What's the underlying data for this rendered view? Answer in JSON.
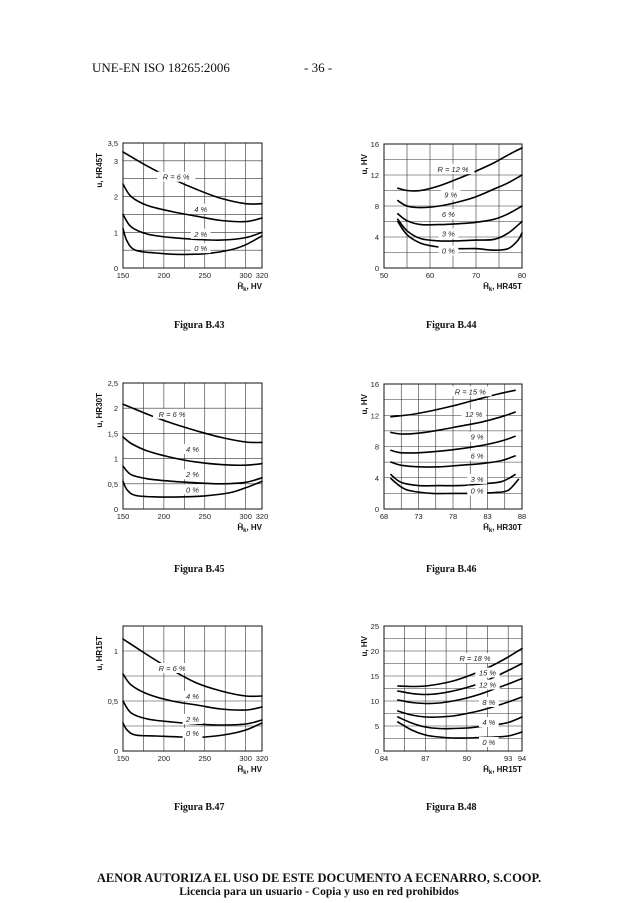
{
  "header": {
    "standard": "UNE-EN ISO 18265:2006",
    "page": "- 36 -"
  },
  "footer": {
    "line1": "AENOR AUTORIZA EL USO DE ESTE DOCUMENTO A ECENARRO, S.COOP.",
    "line2": "Licencia para un usuario - Copia y uso en red prohibidos"
  },
  "chart_data": [
    {
      "type": "line",
      "caption": "Figura B.43",
      "xlabel": "H̄k, HV",
      "ylabel": "u, HR45T",
      "xlim": [
        150,
        320
      ],
      "ylim": [
        0,
        3.5
      ],
      "xticks": [
        150,
        200,
        250,
        300,
        320
      ],
      "xtick_labels": [
        "150",
        "200",
        "250",
        "300",
        "320"
      ],
      "yticks": [
        0,
        1,
        2,
        3,
        3.5
      ],
      "ytick_labels": [
        "0",
        "1",
        "2",
        "3",
        "3,5"
      ],
      "xgrid": [
        150,
        175,
        200,
        225,
        250,
        275,
        300,
        320
      ],
      "ygrid": [
        0,
        0.5,
        1,
        1.5,
        2,
        2.5,
        3,
        3.5
      ],
      "series": [
        {
          "name": "R = 6 %",
          "x": [
            150,
            180,
            210,
            240,
            270,
            300,
            320
          ],
          "y": [
            3.25,
            2.85,
            2.5,
            2.2,
            1.95,
            1.8,
            1.8
          ],
          "label_x": 215,
          "label_y": 2.5
        },
        {
          "name": "4 %",
          "x": [
            150,
            160,
            180,
            210,
            240,
            270,
            300,
            320
          ],
          "y": [
            2.35,
            2.0,
            1.75,
            1.58,
            1.45,
            1.33,
            1.3,
            1.4
          ],
          "label_x": 245,
          "label_y": 1.6
        },
        {
          "name": "2 %",
          "x": [
            150,
            160,
            180,
            210,
            240,
            270,
            300,
            320
          ],
          "y": [
            1.5,
            1.15,
            0.95,
            0.85,
            0.8,
            0.78,
            0.85,
            1.0
          ],
          "label_x": 245,
          "label_y": 0.9
        },
        {
          "name": "0 %",
          "x": [
            150,
            155,
            165,
            190,
            220,
            250,
            280,
            300,
            320
          ],
          "y": [
            1.1,
            0.75,
            0.5,
            0.42,
            0.38,
            0.4,
            0.5,
            0.65,
            0.9
          ],
          "label_x": 245,
          "label_y": 0.5
        }
      ]
    },
    {
      "type": "line",
      "caption": "Figura B.44",
      "xlabel": "H̄k, HR45T",
      "ylabel": "u, HV",
      "xlim": [
        50,
        80
      ],
      "ylim": [
        0,
        16
      ],
      "xticks": [
        50,
        60,
        70,
        80
      ],
      "xtick_labels": [
        "50",
        "60",
        "70",
        "80"
      ],
      "yticks": [
        0,
        4,
        8,
        12,
        16
      ],
      "ytick_labels": [
        "0",
        "4",
        "8",
        "12",
        "16"
      ],
      "xgrid": [
        50,
        55,
        60,
        65,
        70,
        75,
        80
      ],
      "ygrid": [
        0,
        2,
        4,
        6,
        8,
        10,
        12,
        14,
        16
      ],
      "series": [
        {
          "name": "R = 12 %",
          "x": [
            53,
            55,
            58,
            62,
            66,
            70,
            74,
            77,
            80
          ],
          "y": [
            10.3,
            10.0,
            10.0,
            10.6,
            11.5,
            12.5,
            13.6,
            14.6,
            15.5
          ],
          "label_x": 65,
          "label_y": 12.5
        },
        {
          "name": "9 %",
          "x": [
            53,
            55,
            58,
            62,
            66,
            70,
            74,
            77,
            80
          ],
          "y": [
            8.7,
            8.0,
            7.8,
            8.0,
            8.5,
            9.2,
            10.2,
            11.0,
            12.0
          ],
          "label_x": 64.5,
          "label_y": 9.2
        },
        {
          "name": "6 %",
          "x": [
            53,
            55,
            58,
            62,
            66,
            70,
            74,
            77,
            80
          ],
          "y": [
            7.0,
            6.1,
            5.6,
            5.6,
            5.7,
            5.9,
            6.3,
            7.0,
            8.0
          ],
          "label_x": 64,
          "label_y": 6.7
        },
        {
          "name": "3 %",
          "x": [
            53,
            55,
            58,
            62,
            66,
            70,
            74,
            77,
            80
          ],
          "y": [
            6.3,
            4.8,
            3.8,
            3.5,
            3.5,
            3.6,
            3.7,
            4.5,
            6.0
          ],
          "label_x": 64,
          "label_y": 4.2
        },
        {
          "name": "0 %",
          "x": [
            53,
            55,
            58,
            62,
            66,
            70,
            74,
            77,
            79,
            80
          ],
          "y": [
            6.0,
            4.3,
            3.2,
            2.7,
            2.5,
            2.5,
            2.3,
            2.5,
            3.5,
            4.5
          ],
          "label_x": 64,
          "label_y": 2.0
        }
      ]
    },
    {
      "type": "line",
      "caption": "Figura B.45",
      "xlabel": "H̄k, HV",
      "ylabel": "u, HR30T",
      "xlim": [
        150,
        320
      ],
      "ylim": [
        0,
        2.5
      ],
      "xticks": [
        150,
        200,
        250,
        300,
        320
      ],
      "xtick_labels": [
        "150",
        "200",
        "250",
        "300",
        "320"
      ],
      "yticks": [
        0,
        0.5,
        1,
        1.5,
        2,
        2.5
      ],
      "ytick_labels": [
        "0",
        "0,5",
        "1",
        "1,5",
        "2",
        "2,5"
      ],
      "xgrid": [
        150,
        175,
        200,
        225,
        250,
        275,
        300,
        320
      ],
      "ygrid": [
        0,
        0.5,
        1,
        1.5,
        2,
        2.5
      ],
      "series": [
        {
          "name": "R = 6 %",
          "x": [
            150,
            180,
            210,
            240,
            270,
            300,
            320
          ],
          "y": [
            2.08,
            1.88,
            1.7,
            1.55,
            1.42,
            1.33,
            1.32
          ],
          "label_x": 210,
          "label_y": 1.85
        },
        {
          "name": "4 %",
          "x": [
            150,
            160,
            180,
            210,
            240,
            270,
            300,
            320
          ],
          "y": [
            1.43,
            1.3,
            1.15,
            1.02,
            0.93,
            0.88,
            0.87,
            0.9
          ],
          "label_x": 235,
          "label_y": 1.15
        },
        {
          "name": "2 %",
          "x": [
            150,
            160,
            180,
            210,
            240,
            270,
            300,
            320
          ],
          "y": [
            0.85,
            0.68,
            0.6,
            0.55,
            0.52,
            0.5,
            0.53,
            0.62
          ],
          "label_x": 235,
          "label_y": 0.65
        },
        {
          "name": "0 %",
          "x": [
            150,
            155,
            165,
            190,
            220,
            250,
            280,
            300,
            320
          ],
          "y": [
            0.55,
            0.38,
            0.27,
            0.24,
            0.24,
            0.26,
            0.32,
            0.42,
            0.55
          ],
          "label_x": 235,
          "label_y": 0.35
        }
      ]
    },
    {
      "type": "line",
      "caption": "Figura B.46",
      "xlabel": "H̄k, HR30T",
      "ylabel": "u, HV",
      "xlim": [
        68,
        88
      ],
      "ylim": [
        0,
        16
      ],
      "xticks": [
        68,
        73,
        78,
        83,
        88
      ],
      "xtick_labels": [
        "68",
        "73",
        "78",
        "83",
        "88"
      ],
      "yticks": [
        0,
        4,
        8,
        12,
        16
      ],
      "ytick_labels": [
        "0",
        "4",
        "8",
        "12",
        "16"
      ],
      "xgrid": [
        68,
        70.5,
        73,
        75.5,
        78,
        80.5,
        83,
        85.5,
        88
      ],
      "ygrid": [
        0,
        2,
        4,
        6,
        8,
        10,
        12,
        14,
        16
      ],
      "series": [
        {
          "name": "R = 15 %",
          "x": [
            69,
            72,
            75,
            78,
            81,
            84,
            87
          ],
          "y": [
            11.8,
            12.1,
            12.6,
            13.2,
            13.9,
            14.6,
            15.2
          ],
          "label_x": 80.5,
          "label_y": 14.8
        },
        {
          "name": "12 %",
          "x": [
            69,
            70.5,
            73,
            76,
            79,
            82,
            85,
            87
          ],
          "y": [
            9.8,
            9.6,
            9.7,
            10.1,
            10.6,
            11.1,
            11.8,
            12.4
          ],
          "label_x": 81,
          "label_y": 11.9
        },
        {
          "name": "9 %",
          "x": [
            69,
            70.5,
            73,
            76,
            79,
            82,
            85,
            87
          ],
          "y": [
            7.5,
            7.2,
            7.2,
            7.4,
            7.7,
            8.1,
            8.7,
            9.3
          ],
          "label_x": 81.5,
          "label_y": 9.0
        },
        {
          "name": "6 %",
          "x": [
            69,
            70.5,
            73,
            76,
            79,
            82,
            85,
            87
          ],
          "y": [
            6.0,
            5.6,
            5.4,
            5.4,
            5.6,
            5.8,
            6.2,
            6.8
          ],
          "label_x": 81.5,
          "label_y": 6.6
        },
        {
          "name": "3 %",
          "x": [
            69,
            70.5,
            73,
            76,
            79,
            82,
            85,
            87
          ],
          "y": [
            4.4,
            3.4,
            3.0,
            3.0,
            3.0,
            3.2,
            3.5,
            4.4
          ],
          "label_x": 81.5,
          "label_y": 3.6
        },
        {
          "name": "0 %",
          "x": [
            69,
            70.5,
            72,
            75,
            78,
            81,
            84,
            86,
            87.5
          ],
          "y": [
            3.9,
            2.8,
            2.3,
            2.0,
            2.0,
            2.0,
            2.1,
            2.4,
            3.8
          ],
          "label_x": 81.5,
          "label_y": 2.1
        }
      ]
    },
    {
      "type": "line",
      "caption": "Figura B.47",
      "xlabel": "H̄k, HV",
      "ylabel": "u, HR15T",
      "xlim": [
        150,
        320
      ],
      "ylim": [
        0,
        1.25
      ],
      "xticks": [
        150,
        200,
        250,
        300,
        320
      ],
      "xtick_labels": [
        "150",
        "200",
        "250",
        "300",
        "320"
      ],
      "yticks": [
        0,
        0.5,
        1
      ],
      "ytick_labels": [
        "0",
        "0,5",
        "1"
      ],
      "xgrid": [
        150,
        175,
        200,
        225,
        250,
        275,
        300,
        320
      ],
      "ygrid": [
        0,
        0.25,
        0.5,
        0.75,
        1,
        1.25
      ],
      "series": [
        {
          "name": "R = 6 %",
          "x": [
            150,
            180,
            210,
            240,
            270,
            300,
            320
          ],
          "y": [
            1.12,
            0.96,
            0.81,
            0.68,
            0.6,
            0.55,
            0.55
          ],
          "label_x": 210,
          "label_y": 0.81
        },
        {
          "name": "4 %",
          "x": [
            150,
            160,
            180,
            210,
            240,
            270,
            300,
            320
          ],
          "y": [
            0.77,
            0.66,
            0.57,
            0.5,
            0.46,
            0.42,
            0.41,
            0.44
          ],
          "label_x": 235,
          "label_y": 0.53
        },
        {
          "name": "2 %",
          "x": [
            150,
            160,
            180,
            210,
            240,
            270,
            300,
            320
          ],
          "y": [
            0.5,
            0.38,
            0.32,
            0.29,
            0.27,
            0.26,
            0.27,
            0.31
          ],
          "label_x": 235,
          "label_y": 0.3
        },
        {
          "name": "0 %",
          "x": [
            150,
            155,
            165,
            190,
            220,
            250,
            280,
            300,
            320
          ],
          "y": [
            0.28,
            0.21,
            0.16,
            0.15,
            0.14,
            0.14,
            0.17,
            0.21,
            0.28
          ],
          "label_x": 235,
          "label_y": 0.16
        }
      ]
    },
    {
      "type": "line",
      "caption": "Figura B.48",
      "xlabel": "H̄k, HR15T",
      "ylabel": "u, HV",
      "xlim": [
        84,
        94
      ],
      "ylim": [
        0,
        25
      ],
      "xticks": [
        84,
        87,
        90,
        93,
        94
      ],
      "xtick_labels": [
        "84",
        "87",
        "90",
        "93",
        "94"
      ],
      "yticks": [
        0,
        5,
        10,
        15,
        20,
        25
      ],
      "ytick_labels": [
        "0",
        "5",
        "10",
        "15",
        "20",
        "25"
      ],
      "xgrid": [
        84,
        85.5,
        87,
        88.5,
        90,
        91.5,
        93,
        94
      ],
      "ygrid": [
        0,
        2.5,
        5,
        7.5,
        10,
        12.5,
        15,
        17.5,
        20,
        22.5,
        25
      ],
      "series": [
        {
          "name": "R = 18 %",
          "x": [
            85,
            86,
            87,
            88,
            89,
            90,
            91,
            92,
            93,
            94
          ],
          "y": [
            13.0,
            12.9,
            13.0,
            13.4,
            14.0,
            14.9,
            16.0,
            17.3,
            18.8,
            20.5
          ],
          "label_x": 90.6,
          "label_y": 18.2
        },
        {
          "name": "15 %",
          "x": [
            85,
            86,
            87,
            88,
            89,
            90,
            91,
            92,
            93,
            94
          ],
          "y": [
            12.0,
            11.5,
            11.3,
            11.5,
            12.0,
            12.7,
            13.6,
            14.8,
            16.1,
            17.5
          ],
          "label_x": 91.5,
          "label_y": 15.3
        },
        {
          "name": "12 %",
          "x": [
            85,
            86,
            87,
            88,
            89,
            90,
            91,
            92,
            93,
            94
          ],
          "y": [
            10.2,
            9.7,
            9.5,
            9.6,
            10.0,
            10.6,
            11.4,
            12.4,
            13.4,
            14.5
          ],
          "label_x": 91.5,
          "label_y": 12.9
        },
        {
          "name": "8 %",
          "x": [
            85,
            86,
            87,
            88,
            89,
            90,
            91,
            92,
            93,
            94
          ],
          "y": [
            8.0,
            7.2,
            6.8,
            6.8,
            7.0,
            7.5,
            8.1,
            8.9,
            9.8,
            10.8
          ],
          "label_x": 91.6,
          "label_y": 9.4
        },
        {
          "name": "4 %",
          "x": [
            85,
            86,
            87,
            88,
            89,
            90,
            91,
            92,
            93,
            94
          ],
          "y": [
            6.8,
            5.6,
            4.8,
            4.5,
            4.5,
            4.6,
            4.9,
            5.2,
            5.7,
            6.8
          ],
          "label_x": 91.6,
          "label_y": 5.4
        },
        {
          "name": "0 %",
          "x": [
            85,
            86,
            87,
            88,
            89,
            90,
            91,
            92,
            93,
            94
          ],
          "y": [
            5.8,
            4.2,
            3.2,
            2.8,
            2.6,
            2.6,
            2.7,
            2.8,
            3.0,
            3.8
          ],
          "label_x": 91.6,
          "label_y": 1.4
        }
      ]
    }
  ]
}
